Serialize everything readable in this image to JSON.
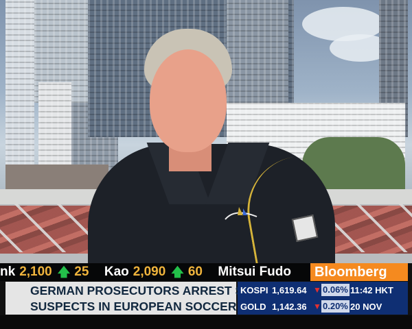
{
  "ticker": {
    "items": [
      {
        "symbol": "nk",
        "price": "2,100",
        "arrow": "up",
        "change": "25"
      },
      {
        "symbol": "Kao",
        "price": "2,090",
        "arrow": "up",
        "change": "60"
      },
      {
        "symbol": "Mitsui Fudo",
        "price": "",
        "arrow": "",
        "change": ""
      }
    ]
  },
  "brand": {
    "name": "Bloomberg"
  },
  "headline": {
    "line1": "GERMAN PROSECUTORS ARREST SEVERAL",
    "line2": "SUSPECTS IN EUROPEAN SOCCER BRIBERY"
  },
  "markets": {
    "rows": [
      {
        "name": "KOSPI",
        "value": "1,619.64",
        "direction": "down",
        "change": "0.06%",
        "extra": "11:42 HKT"
      },
      {
        "name": "GOLD",
        "value": "1,142.36",
        "direction": "down",
        "change": "0.20%",
        "extra": "20 NOV"
      }
    ]
  },
  "colors": {
    "brand_orange": "#f58a1f",
    "ticker_text": "#f0b43c",
    "up_arrow": "#23c04a",
    "down_arrow": "#e23030",
    "markets_bg": "#0f2f73",
    "headline_text": "#12283f"
  },
  "icons": {
    "up": "up-arrow-icon",
    "down": "down-triangle-icon"
  }
}
